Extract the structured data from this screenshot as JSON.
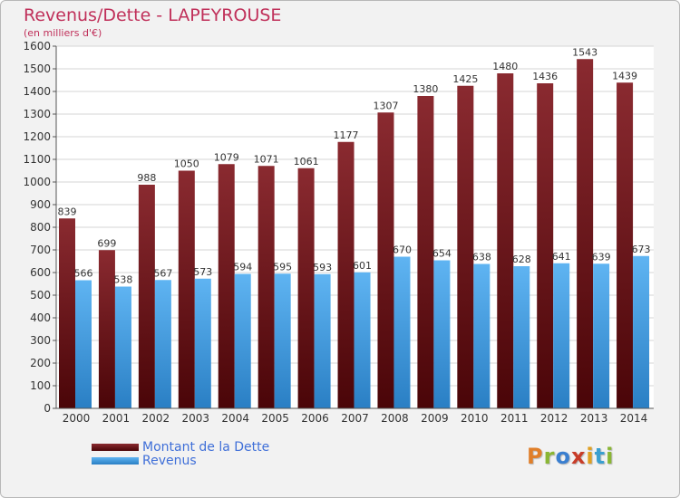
{
  "title": "Revenus/Dette - LAPEYROUSE",
  "subtitle": "(en milliers d'€)",
  "logo": {
    "text": "Proxiti",
    "letter_colors": [
      "#e07f2a",
      "#8ab634",
      "#3a7fd0",
      "#c83c28",
      "#e0a020",
      "#3a9fd0",
      "#8ab634"
    ]
  },
  "colors": {
    "dette": "#7a1f24",
    "revenus": "#3d93d9",
    "plot_background": "#ffffff",
    "grid": "#d6d6d6",
    "axis_text": "#333333"
  },
  "chart_data": {
    "type": "bar",
    "title": "Revenus/Dette - LAPEYROUSE",
    "subtitle": "(en milliers d'€)",
    "xlabel": "",
    "ylabel": "",
    "ylim": [
      0,
      1600
    ],
    "yticks": [
      0,
      100,
      200,
      300,
      400,
      500,
      600,
      700,
      800,
      900,
      1000,
      1100,
      1200,
      1300,
      1400,
      1500,
      1600
    ],
    "grid": true,
    "legend_position": "bottom-left",
    "categories": [
      "2000",
      "2001",
      "2002",
      "2003",
      "2004",
      "2005",
      "2006",
      "2007",
      "2008",
      "2009",
      "2010",
      "2011",
      "2012",
      "2013",
      "2014"
    ],
    "series": [
      {
        "name": "Montant de la Dette",
        "values": [
          839,
          699,
          988,
          1050,
          1079,
          1071,
          1061,
          1177,
          1307,
          1380,
          1425,
          1480,
          1436,
          1543,
          1439
        ]
      },
      {
        "name": "Revenus",
        "values": [
          566,
          538,
          567,
          573,
          594,
          595,
          593,
          601,
          670,
          654,
          638,
          628,
          641,
          639,
          673
        ]
      }
    ]
  }
}
